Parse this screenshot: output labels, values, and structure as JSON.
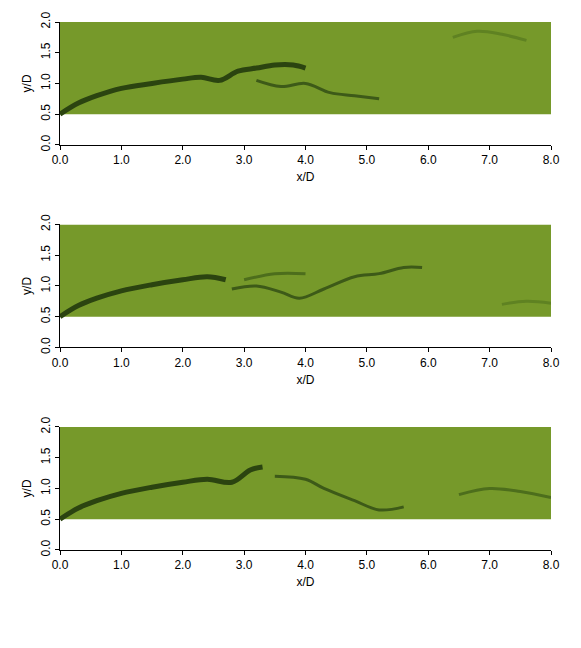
{
  "chart_data": [
    {
      "type": "line",
      "xlabel": "x/D",
      "ylabel": "y/D",
      "xlim": [
        0,
        8
      ],
      "ylim": [
        0,
        2
      ],
      "grid": false,
      "xticks": [
        {
          "value": 0,
          "label": "0.0"
        },
        {
          "value": 1,
          "label": "1.0"
        },
        {
          "value": 2,
          "label": "2.0"
        },
        {
          "value": 3,
          "label": "3.0"
        },
        {
          "value": 4,
          "label": "4.0"
        },
        {
          "value": 5,
          "label": "5.0"
        },
        {
          "value": 6,
          "label": "6.0"
        },
        {
          "value": 7,
          "label": "7.0"
        },
        {
          "value": 8,
          "label": "8.0"
        }
      ],
      "yticks": [
        {
          "value": 0,
          "label": "0.0"
        },
        {
          "value": 0.5,
          "label": "0.5"
        },
        {
          "value": 1,
          "label": "1.0"
        },
        {
          "value": 1.5,
          "label": "1.5"
        },
        {
          "value": 2,
          "label": "2.0"
        }
      ],
      "series": [
        {
          "type": "area",
          "color": "#76992a",
          "x": [
            0,
            8,
            8,
            0
          ],
          "values": [
            0.5,
            0.5,
            2,
            2
          ]
        },
        {
          "type": "line",
          "color": "#2b4410",
          "x": [
            0,
            0.3,
            0.6,
            1.0,
            1.5,
            2.0,
            2.3,
            2.6,
            2.9,
            3.2,
            3.5,
            3.8,
            4.0
          ],
          "values": [
            0.5,
            0.68,
            0.8,
            0.92,
            1.0,
            1.07,
            1.1,
            1.05,
            1.2,
            1.25,
            1.3,
            1.3,
            1.25
          ]
        },
        {
          "type": "line",
          "color": "#3d5a18",
          "x": [
            3.2,
            3.6,
            4.0,
            4.4,
            4.8,
            5.2
          ],
          "values": [
            1.05,
            0.95,
            1.0,
            0.85,
            0.8,
            0.75
          ]
        },
        {
          "type": "line",
          "color": "#5f8222",
          "x": [
            6.4,
            6.8,
            7.2,
            7.6
          ],
          "values": [
            1.75,
            1.85,
            1.8,
            1.7
          ]
        }
      ]
    },
    {
      "type": "line",
      "xlabel": "x/D",
      "ylabel": "y/D",
      "xlim": [
        0,
        8
      ],
      "ylim": [
        0,
        2
      ],
      "grid": false,
      "xticks": [
        {
          "value": 0,
          "label": "0.0"
        },
        {
          "value": 1,
          "label": "1.0"
        },
        {
          "value": 2,
          "label": "2.0"
        },
        {
          "value": 3,
          "label": "3.0"
        },
        {
          "value": 4,
          "label": "4.0"
        },
        {
          "value": 5,
          "label": "5.0"
        },
        {
          "value": 6,
          "label": "6.0"
        },
        {
          "value": 7,
          "label": "7.0"
        },
        {
          "value": 8,
          "label": "8.0"
        }
      ],
      "yticks": [
        {
          "value": 0,
          "label": "0.0"
        },
        {
          "value": 0.5,
          "label": "0.5"
        },
        {
          "value": 1,
          "label": "1.0"
        },
        {
          "value": 1.5,
          "label": "1.5"
        },
        {
          "value": 2,
          "label": "2.0"
        }
      ],
      "series": [
        {
          "type": "area",
          "color": "#76992a",
          "x": [
            0,
            8,
            8,
            0
          ],
          "values": [
            0.5,
            0.5,
            2,
            2
          ]
        },
        {
          "type": "line",
          "color": "#2b4410",
          "x": [
            0,
            0.3,
            0.6,
            1.0,
            1.5,
            2.0,
            2.4,
            2.7
          ],
          "values": [
            0.5,
            0.68,
            0.8,
            0.92,
            1.02,
            1.1,
            1.15,
            1.1
          ]
        },
        {
          "type": "line",
          "color": "#3d5a18",
          "x": [
            2.8,
            3.2,
            3.6,
            3.9,
            4.3,
            4.8,
            5.2,
            5.6,
            5.9
          ],
          "values": [
            0.95,
            1.0,
            0.9,
            0.8,
            0.95,
            1.15,
            1.2,
            1.3,
            1.3
          ]
        },
        {
          "type": "line",
          "color": "#4d6e1c",
          "x": [
            3.0,
            3.5,
            4.0
          ],
          "values": [
            1.1,
            1.2,
            1.2
          ]
        },
        {
          "type": "line",
          "color": "#5f8222",
          "x": [
            7.2,
            7.6,
            8.0
          ],
          "values": [
            0.7,
            0.75,
            0.72
          ]
        }
      ]
    },
    {
      "type": "line",
      "xlabel": "x/D",
      "ylabel": "y/D",
      "xlim": [
        0,
        8
      ],
      "ylim": [
        0,
        2
      ],
      "grid": false,
      "xticks": [
        {
          "value": 0,
          "label": "0.0"
        },
        {
          "value": 1,
          "label": "1.0"
        },
        {
          "value": 2,
          "label": "2.0"
        },
        {
          "value": 3,
          "label": "3.0"
        },
        {
          "value": 4,
          "label": "4.0"
        },
        {
          "value": 5,
          "label": "5.0"
        },
        {
          "value": 6,
          "label": "6.0"
        },
        {
          "value": 7,
          "label": "7.0"
        },
        {
          "value": 8,
          "label": "8.0"
        }
      ],
      "yticks": [
        {
          "value": 0,
          "label": "0.0"
        },
        {
          "value": 0.5,
          "label": "0.5"
        },
        {
          "value": 1,
          "label": "1.0"
        },
        {
          "value": 1.5,
          "label": "1.5"
        },
        {
          "value": 2,
          "label": "2.0"
        }
      ],
      "series": [
        {
          "type": "area",
          "color": "#76992a",
          "x": [
            0,
            8,
            8,
            0
          ],
          "values": [
            0.5,
            0.5,
            2,
            2
          ]
        },
        {
          "type": "line",
          "color": "#2b4410",
          "x": [
            0,
            0.3,
            0.6,
            1.0,
            1.5,
            2.0,
            2.4,
            2.8,
            3.1,
            3.3
          ],
          "values": [
            0.5,
            0.68,
            0.8,
            0.92,
            1.02,
            1.1,
            1.15,
            1.1,
            1.3,
            1.35
          ]
        },
        {
          "type": "line",
          "color": "#3d5a18",
          "x": [
            3.5,
            4.0,
            4.3,
            4.8,
            5.2,
            5.6
          ],
          "values": [
            1.2,
            1.15,
            1.0,
            0.8,
            0.65,
            0.7
          ]
        },
        {
          "type": "line",
          "color": "#4d6e1c",
          "x": [
            6.5,
            7.0,
            7.5,
            8.0
          ],
          "values": [
            0.9,
            1.0,
            0.95,
            0.85
          ]
        }
      ]
    }
  ]
}
